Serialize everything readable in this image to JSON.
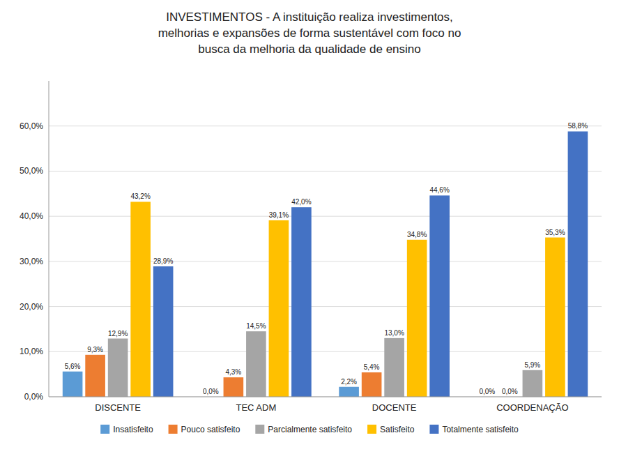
{
  "chart_data": {
    "type": "bar",
    "title": "INVESTIMENTOS - A instituição realiza investimentos,\nmelhorias e expansões de forma sustentável com foco no\nbusca da melhoria da qualidade de ensino",
    "categories": [
      "DISCENTE",
      "TEC ADM",
      "DOCENTE",
      "COORDENAÇÃO"
    ],
    "series": [
      {
        "name": "Insatisfeito",
        "color": "#5B9BD5",
        "values": [
          5.6,
          0.0,
          2.2,
          0.0
        ],
        "value_labels": [
          "5,6%",
          "0,0%",
          "2,2%",
          "0,0%"
        ]
      },
      {
        "name": "Pouco satisfeito",
        "color": "#ED7D31",
        "values": [
          9.3,
          4.3,
          5.4,
          0.0
        ],
        "value_labels": [
          "9,3%",
          "4,3%",
          "5,4%",
          "0,0%"
        ]
      },
      {
        "name": "Parcialmente satisfeito",
        "color": "#A5A5A5",
        "values": [
          12.9,
          14.5,
          13.0,
          5.9
        ],
        "value_labels": [
          "12,9%",
          "14,5%",
          "13,0%",
          "5,9%"
        ]
      },
      {
        "name": "Satisfeito",
        "color": "#FFC000",
        "values": [
          43.2,
          39.1,
          34.8,
          35.3
        ],
        "value_labels": [
          "43,2%",
          "39,1%",
          "34,8%",
          "35,3%"
        ]
      },
      {
        "name": "Totalmente satisfeito",
        "color": "#4472C4",
        "values": [
          28.9,
          42.0,
          44.6,
          58.8
        ],
        "value_labels": [
          "28,9%",
          "42,0%",
          "44,6%",
          "58,8%"
        ]
      }
    ],
    "ylim": [
      0,
      70
    ],
    "yticks": [
      {
        "value": 0,
        "label": "0,0%"
      },
      {
        "value": 10,
        "label": "10,0%"
      },
      {
        "value": 20,
        "label": "20,0%"
      },
      {
        "value": 30,
        "label": "30,0%"
      },
      {
        "value": 40,
        "label": "40,0%"
      },
      {
        "value": 50,
        "label": "50,0%"
      },
      {
        "value": 60,
        "label": "60,0%"
      }
    ],
    "grid": true,
    "legend": "bottom",
    "data_labels": true
  }
}
